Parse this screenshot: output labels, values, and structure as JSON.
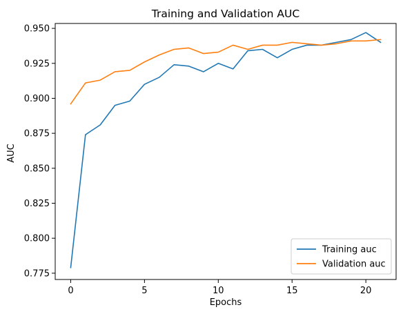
{
  "chart_data": {
    "type": "line",
    "title": "Training and Validation AUC",
    "xlabel": "Epochs",
    "ylabel": "AUC",
    "x": [
      0,
      1,
      2,
      3,
      4,
      5,
      6,
      7,
      8,
      9,
      10,
      11,
      12,
      13,
      14,
      15,
      16,
      17,
      18,
      19,
      20,
      21
    ],
    "xlim": [
      -1.05,
      22.05
    ],
    "ylim": [
      0.7705,
      0.9535
    ],
    "xticks": [
      0,
      5,
      10,
      15,
      20
    ],
    "yticks": [
      0.775,
      0.8,
      0.825,
      0.85,
      0.875,
      0.9,
      0.925,
      0.95
    ],
    "ytick_labels": [
      "0.775",
      "0.800",
      "0.825",
      "0.850",
      "0.875",
      "0.900",
      "0.925",
      "0.950"
    ],
    "grid": false,
    "legend_position": "lower-right",
    "series": [
      {
        "name": "Training auc",
        "color": "#1f77b4",
        "values": [
          0.779,
          0.874,
          0.881,
          0.895,
          0.898,
          0.91,
          0.915,
          0.924,
          0.923,
          0.919,
          0.925,
          0.921,
          0.934,
          0.935,
          0.929,
          0.935,
          0.938,
          0.938,
          0.94,
          0.942,
          0.947,
          0.94
        ]
      },
      {
        "name": "Validation auc",
        "color": "#ff7f0e",
        "values": [
          0.896,
          0.911,
          0.913,
          0.919,
          0.92,
          0.926,
          0.931,
          0.935,
          0.936,
          0.932,
          0.933,
          0.938,
          0.935,
          0.938,
          0.938,
          0.94,
          0.939,
          0.938,
          0.939,
          0.941,
          0.941,
          0.942
        ]
      }
    ]
  }
}
